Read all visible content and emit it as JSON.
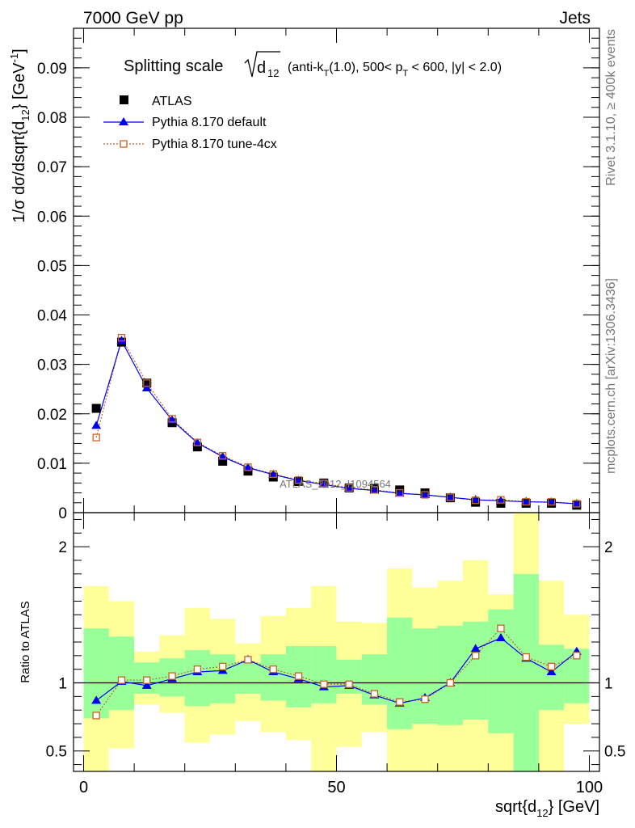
{
  "header": {
    "left": "7000 GeV pp",
    "right": "Jets"
  },
  "side_labels": {
    "rivet": "Rivet 3.1.10, ≥ 400k events",
    "mcplots": "mcplots.cern.ch [arXiv:1306.3436]"
  },
  "watermark": "ATLAS_2012_I1094564",
  "chart_data": [
    {
      "type": "scatter",
      "title": "Splitting scale √d12 (anti-kT(1.0), 500< pT < 600, |y| < 2.0)",
      "title_parts": {
        "main": "Splitting scale",
        "sqrt_var": "d",
        "sqrt_sub": "12",
        "p1": " (anti-k",
        "p1_sub": "T",
        "p2": "(1.0), 500< p",
        "p2_sub": "T",
        "p3": " < 600, |y| < 2.0)"
      },
      "ylabel": "1/σ dσ/dsqrt{d12} [GeV⁻¹]",
      "ylabel_parts": {
        "a": "1/σ dσ/dsqrt{d",
        "sub": "12",
        "b": "} [GeV",
        "sup": "-1",
        "c": "]"
      },
      "xlim": [
        -2,
        102
      ],
      "ylim": [
        0,
        0.098
      ],
      "yticks": [
        0,
        0.01,
        0.02,
        0.03,
        0.04,
        0.05,
        0.06,
        0.07,
        0.08,
        0.09
      ],
      "ytick_labels": [
        "0",
        "0.01",
        "0.02",
        "0.03",
        "0.04",
        "0.05",
        "0.06",
        "0.07",
        "0.08",
        "0.09"
      ],
      "legend_position": "top-left",
      "x": [
        2.5,
        7.5,
        12.5,
        17.5,
        22.5,
        27.5,
        32.5,
        37.5,
        42.5,
        47.5,
        52.5,
        57.5,
        62.5,
        67.5,
        72.5,
        77.5,
        82.5,
        87.5,
        92.5,
        97.5
      ],
      "series": [
        {
          "name": "ATLAS",
          "color": "#000000",
          "marker": "square",
          "values": [
            0.0211,
            0.0345,
            0.0262,
            0.0182,
            0.0133,
            0.0104,
            0.0084,
            0.0072,
            0.0063,
            0.006,
            0.005,
            0.0049,
            0.0046,
            0.004,
            0.003,
            0.0021,
            0.0019,
            0.0019,
            0.0019,
            0.0015
          ]
        },
        {
          "name": "Pythia 8.170 default",
          "color": "#0000ee",
          "marker": "triangle",
          "line": "solid",
          "values": [
            0.0176,
            0.0348,
            0.0252,
            0.0187,
            0.0141,
            0.0113,
            0.0091,
            0.0077,
            0.0065,
            0.0057,
            0.0049,
            0.0045,
            0.0039,
            0.0036,
            0.0031,
            0.0026,
            0.0024,
            0.0022,
            0.0021,
            0.0018
          ]
        },
        {
          "name": "Pythia 8.170 tune-4cx",
          "color": "#c86428",
          "marker": "open-square",
          "line": "dotted",
          "values": [
            0.0152,
            0.0354,
            0.0262,
            0.019,
            0.0142,
            0.0115,
            0.0092,
            0.0078,
            0.0066,
            0.0059,
            0.005,
            0.0046,
            0.004,
            0.0036,
            0.0031,
            0.0025,
            0.0026,
            0.0022,
            0.0022,
            0.0018
          ]
        }
      ]
    },
    {
      "type": "scatter",
      "ylabel": "Ratio to ATLAS",
      "xlabel": "sqrt{d12} [GeV]",
      "xlabel_parts": {
        "a": "sqrt{d",
        "sub": "12",
        "b": "} [GeV]"
      },
      "xlim": [
        -2,
        102
      ],
      "ylim": [
        0.35,
        2.25
      ],
      "xticks": [
        0,
        50,
        100
      ],
      "xtick_labels": [
        "0",
        "50",
        "100"
      ],
      "yticks": [
        0.5,
        1,
        2
      ],
      "ytick_labels": [
        "0.5",
        "1",
        "2"
      ],
      "reference_line": 1,
      "band_edges": [
        0,
        5,
        10,
        15,
        20,
        25,
        30,
        35,
        40,
        45,
        50,
        55,
        60,
        65,
        70,
        75,
        80,
        85,
        90,
        95,
        100
      ],
      "band_1sigma": {
        "color": "#99ff99",
        "low": [
          0.74,
          0.8,
          0.92,
          0.9,
          0.83,
          0.85,
          0.92,
          0.87,
          0.82,
          0.85,
          0.92,
          0.84,
          0.66,
          0.7,
          0.69,
          0.73,
          0.63,
          0.2,
          0.8,
          0.85
        ],
        "high": [
          1.4,
          1.34,
          1.15,
          1.18,
          1.24,
          1.21,
          1.15,
          1.21,
          1.27,
          1.27,
          1.17,
          1.21,
          1.48,
          1.4,
          1.42,
          1.45,
          1.54,
          1.8,
          1.28,
          1.25
        ]
      },
      "band_2sigma": {
        "color": "#ffff99",
        "low": [
          0.3,
          0.52,
          0.84,
          0.78,
          0.56,
          0.62,
          0.72,
          0.64,
          0.58,
          0.3,
          0.53,
          0.64,
          0.3,
          0.3,
          0.3,
          0.3,
          0.2,
          0.2,
          0.3,
          0.7
        ],
        "high": [
          1.71,
          1.6,
          1.23,
          1.35,
          1.55,
          1.47,
          1.29,
          1.49,
          1.55,
          1.71,
          1.45,
          1.44,
          1.84,
          1.7,
          1.75,
          1.9,
          1.65,
          2.3,
          1.75,
          1.5
        ]
      },
      "x": [
        2.5,
        7.5,
        12.5,
        17.5,
        22.5,
        27.5,
        32.5,
        37.5,
        42.5,
        47.5,
        52.5,
        57.5,
        62.5,
        67.5,
        72.5,
        77.5,
        82.5,
        87.5,
        92.5,
        97.5
      ],
      "series": [
        {
          "name": "Pythia 8.170 default",
          "color": "#0000ee",
          "marker": "triangle",
          "line": "solid",
          "values": [
            0.87,
            1.01,
            0.98,
            1.03,
            1.08,
            1.09,
            1.17,
            1.08,
            1.03,
            0.97,
            0.98,
            0.91,
            0.85,
            0.89,
            1.0,
            1.25,
            1.33,
            1.18,
            1.08,
            1.23
          ]
        },
        {
          "name": "Pythia 8.170 tune-4cx",
          "color": "#c86428",
          "marker": "open-square",
          "line": "dotted",
          "values": [
            0.76,
            1.02,
            1.02,
            1.05,
            1.1,
            1.12,
            1.17,
            1.1,
            1.05,
            0.99,
            0.99,
            0.92,
            0.86,
            0.88,
            1.0,
            1.2,
            1.4,
            1.19,
            1.12,
            1.2
          ]
        }
      ]
    }
  ]
}
